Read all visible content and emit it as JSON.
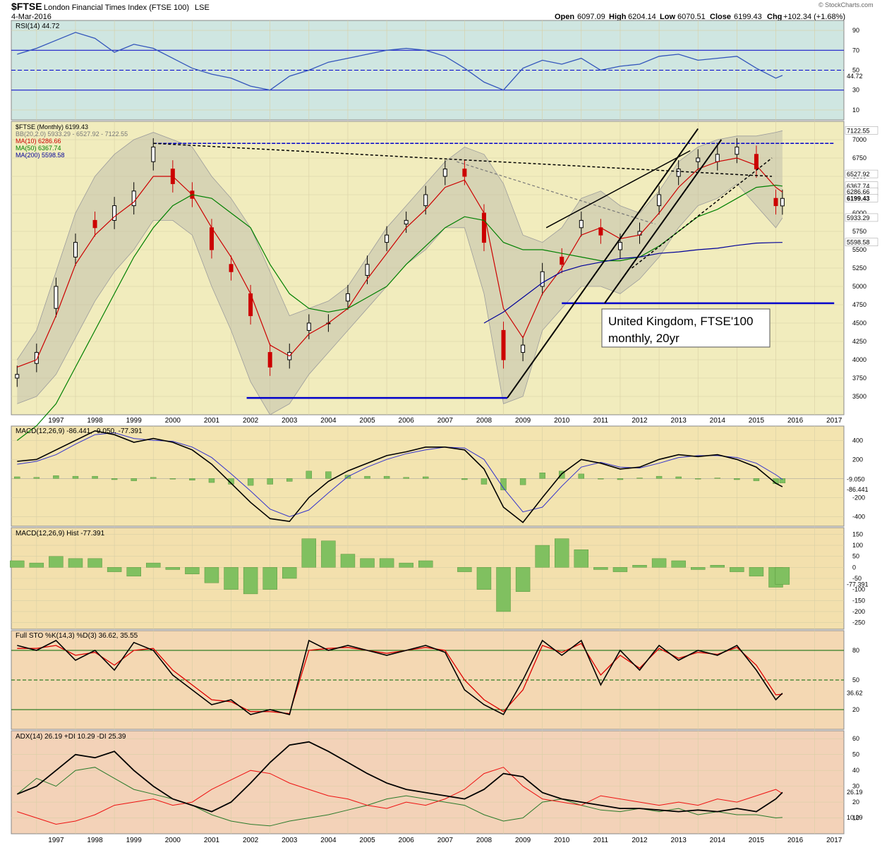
{
  "header": {
    "symbol": "$FTSE",
    "name": "London Financial Times Index (FTSE 100)",
    "exchange": "LSE",
    "date": "4-Mar-2016",
    "watermark": "© StockCharts.com",
    "quote": {
      "open_label": "Open",
      "open": "6097.09",
      "high_label": "High",
      "high": "6204.14",
      "low_label": "Low",
      "low": "6070.51",
      "close_label": "Close",
      "close": "6199.43",
      "chg_label": "Chg",
      "chg": "+102.34 (+1.68%)"
    }
  },
  "annotation": {
    "line1": "United Kingdom, FTSE'100",
    "line2": "monthly, 20yr"
  },
  "colors": {
    "rsi_bg": "#cfe6e1",
    "price_bg": "#f1ecbd",
    "macd_bg": "#f3e4b0",
    "hist_bg": "#f3e0ad",
    "sto_bg": "#f4d8b3",
    "adx_bg": "#f3d2b8",
    "grid": "#d8cfa5",
    "up": "#000000",
    "down": "#cc0000",
    "bb": "#9c9c9c",
    "ma10": "#cc0000",
    "ma50": "#008000",
    "ma200": "#000099",
    "blue_line": "#0000cc",
    "hist_bar": "#80c060"
  },
  "x_axis": {
    "years": [
      "1997",
      "1998",
      "1999",
      "2000",
      "2001",
      "2002",
      "2003",
      "2004",
      "2005",
      "2006",
      "2007",
      "2008",
      "2009",
      "2010",
      "2011",
      "2012",
      "2013",
      "2014",
      "2015",
      "2016",
      "2017"
    ]
  },
  "chart_data": [
    {
      "type": "line",
      "panel": "rsi",
      "legend": "RSI(14) 44.72",
      "y_ticks": [
        "10",
        "30",
        "50",
        "70",
        "90"
      ],
      "ylim": [
        0,
        100
      ],
      "last_label": "44.72",
      "x": [
        1996.5,
        1997.0,
        1997.5,
        1998.0,
        1998.5,
        1999.0,
        1999.5,
        2000.0,
        2000.5,
        2001.0,
        2001.5,
        2002.0,
        2002.5,
        2003.0,
        2003.5,
        2004.0,
        2004.5,
        2005.0,
        2005.5,
        2006.0,
        2006.5,
        2007.0,
        2007.5,
        2008.0,
        2008.5,
        2009.0,
        2009.5,
        2010.0,
        2010.5,
        2011.0,
        2011.5,
        2012.0,
        2012.5,
        2013.0,
        2013.5,
        2014.0,
        2014.5,
        2015.0,
        2015.5,
        2016.0,
        2016.17
      ],
      "values": [
        66,
        72,
        80,
        88,
        82,
        68,
        76,
        72,
        62,
        52,
        46,
        42,
        34,
        30,
        44,
        50,
        58,
        62,
        66,
        70,
        72,
        70,
        64,
        52,
        38,
        30,
        52,
        60,
        56,
        62,
        50,
        54,
        56,
        64,
        66,
        60,
        62,
        64,
        52,
        42,
        44.72
      ],
      "ref_lines": [
        70,
        50,
        30
      ]
    },
    {
      "type": "candlestick",
      "panel": "price",
      "legend": [
        {
          "label": "$FTSE (Monthly) 6199.43"
        },
        {
          "label": "BB(20,2.0) 5933.29 - 6527.92 - 7122.55"
        },
        {
          "label": "MA(10) 6286.66"
        },
        {
          "label": "MA(50) 6367.74"
        },
        {
          "label": "MA(200) 5598.58"
        }
      ],
      "y_ticks": [
        "3500",
        "3750",
        "4000",
        "4250",
        "4500",
        "4750",
        "5000",
        "5250",
        "5500",
        "5750",
        "6000",
        "6250",
        "6500",
        "6750",
        "7000"
      ],
      "ylim": [
        3250,
        7250
      ],
      "right_labels": [
        "7122.55",
        "6527.92",
        "6367.74",
        "6286.66",
        "6199.43",
        "5933.29",
        "5598.58"
      ],
      "x": [
        1996.5,
        1997.0,
        1997.5,
        1998.0,
        1998.5,
        1999.0,
        1999.5,
        2000.0,
        2000.5,
        2001.0,
        2001.5,
        2002.0,
        2002.5,
        2003.0,
        2003.5,
        2004.0,
        2004.5,
        2005.0,
        2005.5,
        2006.0,
        2006.5,
        2007.0,
        2007.5,
        2008.0,
        2008.5,
        2009.0,
        2009.5,
        2010.0,
        2010.5,
        2011.0,
        2011.5,
        2012.0,
        2012.5,
        2013.0,
        2013.5,
        2014.0,
        2014.5,
        2015.0,
        2015.5,
        2016.0,
        2016.17
      ],
      "close": [
        3800,
        4100,
        5000,
        5600,
        5800,
        6100,
        6300,
        6900,
        6400,
        6200,
        5500,
        5200,
        4600,
        3900,
        4100,
        4500,
        4500,
        4900,
        5300,
        5700,
        5900,
        6250,
        6600,
        6500,
        5600,
        4000,
        4200,
        5200,
        5300,
        5900,
        5700,
        5600,
        5750,
        6250,
        6600,
        6750,
        6800,
        6900,
        6600,
        6100,
        6199.43
      ],
      "open": [
        3750,
        3950,
        4700,
        5400,
        5900,
        5900,
        6100,
        6700,
        6600,
        6300,
        5800,
        5300,
        4900,
        4100,
        4000,
        4400,
        4500,
        4800,
        5150,
        5600,
        5850,
        6100,
        6500,
        6600,
        6000,
        4400,
        4100,
        5000,
        5400,
        5800,
        5800,
        5500,
        5700,
        6100,
        6500,
        6700,
        6700,
        6800,
        6800,
        6200,
        6097.09
      ],
      "ma10": [
        3900,
        4000,
        4600,
        5300,
        5700,
        5950,
        6150,
        6500,
        6500,
        6250,
        5800,
        5400,
        4900,
        4200,
        4050,
        4350,
        4500,
        4700,
        5100,
        5450,
        5800,
        6050,
        6350,
        6450,
        6000,
        4700,
        4300,
        4900,
        5250,
        5700,
        5800,
        5650,
        5700,
        6000,
        6350,
        6600,
        6700,
        6750,
        6650,
        6350,
        6286.66
      ],
      "ma50": [
        2900,
        3100,
        3400,
        3900,
        4400,
        4900,
        5400,
        5800,
        6100,
        6250,
        6200,
        6000,
        5800,
        5300,
        4900,
        4700,
        4650,
        4700,
        4850,
        5000,
        5300,
        5550,
        5800,
        5950,
        5900,
        5600,
        5500,
        5500,
        5450,
        5400,
        5350,
        5350,
        5400,
        5550,
        5750,
        5950,
        6050,
        6200,
        6350,
        6380,
        6367.74
      ],
      "ma200": [
        null,
        null,
        null,
        null,
        null,
        null,
        null,
        null,
        null,
        null,
        null,
        null,
        null,
        null,
        null,
        null,
        null,
        null,
        null,
        null,
        null,
        null,
        null,
        null,
        4500,
        4650,
        4850,
        5050,
        5200,
        5280,
        5330,
        5380,
        5400,
        5450,
        5470,
        5500,
        5520,
        5560,
        5590,
        5598,
        5598.58
      ],
      "bb_upper": [
        4000,
        4400,
        5200,
        6000,
        6500,
        6800,
        7000,
        7100,
        7000,
        6900,
        6500,
        6200,
        5800,
        5200,
        4600,
        4700,
        4800,
        5000,
        5400,
        5800,
        6100,
        6400,
        6700,
        6900,
        6800,
        6400,
        5700,
        5600,
        5800,
        6200,
        6300,
        6100,
        6000,
        6300,
        6700,
        6900,
        7000,
        7050,
        7050,
        7100,
        7122.55
      ],
      "bb_lower": [
        3400,
        3500,
        3800,
        4300,
        4800,
        5200,
        5500,
        5900,
        5900,
        5700,
        5000,
        4400,
        3700,
        3250,
        3400,
        3800,
        4100,
        4400,
        4700,
        5000,
        5300,
        5500,
        5800,
        5800,
        4900,
        3400,
        3500,
        4400,
        4700,
        5000,
        5000,
        4900,
        5100,
        5400,
        5800,
        6100,
        6200,
        6400,
        6100,
        5800,
        5933.29
      ],
      "hlines": [
        {
          "value": 3480,
          "from_x": 2002.4,
          "to_x": 2009.1
        },
        {
          "value": 4770,
          "from_x": 2010.5,
          "to_x": 2017.5
        },
        {
          "value": 6950,
          "from_x": 2000.0,
          "to_x": 2017.5
        }
      ]
    },
    {
      "type": "line",
      "panel": "macd",
      "legend": "MACD(12,26,9) -86.441, -9.050, -77.391",
      "y_ticks": [
        "400",
        "200",
        "-200",
        "-400"
      ],
      "ylim": [
        -500,
        550
      ],
      "right_labels": [
        "-9.050",
        "-86.441"
      ],
      "x": [
        1996.5,
        1997.0,
        1997.5,
        1998.0,
        1998.5,
        1999.0,
        1999.5,
        2000.0,
        2000.5,
        2001.0,
        2001.5,
        2002.0,
        2002.5,
        2003.0,
        2003.5,
        2004.0,
        2004.5,
        2005.0,
        2005.5,
        2006.0,
        2006.5,
        2007.0,
        2007.5,
        2008.0,
        2008.5,
        2009.0,
        2009.5,
        2010.0,
        2010.5,
        2011.0,
        2011.5,
        2012.0,
        2012.5,
        2013.0,
        2013.5,
        2014.0,
        2014.5,
        2015.0,
        2015.5,
        2016.0,
        2016.17
      ],
      "macd": [
        180,
        200,
        300,
        400,
        500,
        460,
        380,
        420,
        380,
        300,
        150,
        -50,
        -250,
        -420,
        -450,
        -200,
        -30,
        80,
        160,
        240,
        280,
        330,
        330,
        300,
        100,
        -300,
        -460,
        -200,
        50,
        200,
        160,
        100,
        120,
        200,
        250,
        230,
        250,
        200,
        120,
        -50,
        -86.441
      ],
      "signal": [
        150,
        180,
        250,
        360,
        460,
        480,
        420,
        400,
        390,
        330,
        220,
        50,
        -130,
        -320,
        -400,
        -330,
        -150,
        20,
        120,
        200,
        260,
        300,
        330,
        320,
        200,
        -100,
        -350,
        -300,
        -80,
        120,
        170,
        120,
        110,
        160,
        220,
        240,
        240,
        220,
        160,
        40,
        -9.05
      ]
    },
    {
      "type": "bar",
      "panel": "histogram",
      "legend": "MACD(12,26,9) Hist -77.391",
      "y_ticks": [
        "150",
        "100",
        "50",
        "0",
        "-50",
        "-100",
        "-150",
        "-200",
        "-250"
      ],
      "ylim": [
        -280,
        180
      ],
      "right_labels": [
        "-77.391"
      ],
      "x": [
        1996.5,
        1997.0,
        1997.5,
        1998.0,
        1998.5,
        1999.0,
        1999.5,
        2000.0,
        2000.5,
        2001.0,
        2001.5,
        2002.0,
        2002.5,
        2003.0,
        2003.5,
        2004.0,
        2004.5,
        2005.0,
        2005.5,
        2006.0,
        2006.5,
        2007.0,
        2007.5,
        2008.0,
        2008.5,
        2009.0,
        2009.5,
        2010.0,
        2010.5,
        2011.0,
        2011.5,
        2012.0,
        2012.5,
        2013.0,
        2013.5,
        2014.0,
        2014.5,
        2015.0,
        2015.5,
        2016.0,
        2016.17
      ],
      "values": [
        30,
        20,
        50,
        40,
        40,
        -20,
        -40,
        20,
        -10,
        -30,
        -70,
        -100,
        -120,
        -100,
        -50,
        130,
        120,
        60,
        40,
        40,
        20,
        30,
        0,
        -20,
        -100,
        -200,
        -110,
        100,
        130,
        80,
        -10,
        -20,
        10,
        40,
        30,
        -10,
        10,
        -20,
        -40,
        -90,
        -77.391
      ]
    },
    {
      "type": "line",
      "panel": "stochastic",
      "legend": "Full STO %K(14,3) %D(3) 36.62, 35.55",
      "y_ticks": [
        "80",
        "50",
        "20"
      ],
      "ylim": [
        0,
        100
      ],
      "right_labels": [
        "36.62"
      ],
      "ref_lines": [
        80,
        50,
        20
      ],
      "x": [
        1996.5,
        1997.0,
        1997.5,
        1998.0,
        1998.5,
        1999.0,
        1999.5,
        2000.0,
        2000.5,
        2001.0,
        2001.5,
        2002.0,
        2002.5,
        2003.0,
        2003.5,
        2004.0,
        2004.5,
        2005.0,
        2005.5,
        2006.0,
        2006.5,
        2007.0,
        2007.5,
        2008.0,
        2008.5,
        2009.0,
        2009.5,
        2010.0,
        2010.5,
        2011.0,
        2011.5,
        2012.0,
        2012.5,
        2013.0,
        2013.5,
        2014.0,
        2014.5,
        2015.0,
        2015.5,
        2016.0,
        2016.17
      ],
      "k": [
        85,
        80,
        90,
        70,
        80,
        60,
        88,
        80,
        55,
        40,
        25,
        30,
        15,
        20,
        15,
        90,
        80,
        85,
        80,
        75,
        80,
        85,
        78,
        40,
        25,
        15,
        50,
        90,
        75,
        90,
        45,
        80,
        60,
        85,
        70,
        80,
        75,
        85,
        60,
        30,
        36.62
      ],
      "d": [
        82,
        82,
        85,
        75,
        78,
        65,
        80,
        82,
        60,
        45,
        30,
        28,
        18,
        18,
        16,
        80,
        82,
        83,
        80,
        77,
        80,
        83,
        80,
        50,
        30,
        18,
        40,
        85,
        78,
        87,
        55,
        75,
        62,
        82,
        72,
        78,
        76,
        83,
        65,
        35,
        35.55
      ]
    },
    {
      "type": "line",
      "panel": "adx",
      "legend": "ADX(14) 26.19 +DI 10.29 -DI 25.39",
      "y_ticks": [
        "60",
        "50",
        "40",
        "30",
        "20",
        "10"
      ],
      "ylim": [
        0,
        65
      ],
      "right_labels": [
        "26.19",
        "10.29"
      ],
      "x": [
        1996.5,
        1997.0,
        1997.5,
        1998.0,
        1998.5,
        1999.0,
        1999.5,
        2000.0,
        2000.5,
        2001.0,
        2001.5,
        2002.0,
        2002.5,
        2003.0,
        2003.5,
        2004.0,
        2004.5,
        2005.0,
        2005.5,
        2006.0,
        2006.5,
        2007.0,
        2007.5,
        2008.0,
        2008.5,
        2009.0,
        2009.5,
        2010.0,
        2010.5,
        2011.0,
        2011.5,
        2012.0,
        2012.5,
        2013.0,
        2013.5,
        2014.0,
        2014.5,
        2015.0,
        2015.5,
        2016.0,
        2016.17
      ],
      "adx": [
        25,
        30,
        40,
        50,
        48,
        52,
        40,
        30,
        22,
        18,
        14,
        20,
        32,
        45,
        56,
        58,
        52,
        45,
        38,
        32,
        28,
        26,
        24,
        22,
        28,
        38,
        36,
        26,
        22,
        20,
        18,
        16,
        16,
        15,
        14,
        15,
        14,
        16,
        14,
        22,
        26.19
      ],
      "plus_di": [
        25,
        35,
        30,
        40,
        42,
        35,
        28,
        25,
        22,
        18,
        12,
        8,
        6,
        5,
        8,
        10,
        12,
        15,
        18,
        22,
        24,
        22,
        20,
        18,
        12,
        8,
        10,
        20,
        22,
        18,
        15,
        14,
        16,
        14,
        16,
        12,
        14,
        12,
        12,
        10,
        10.29
      ],
      "minus_di": [
        14,
        10,
        6,
        8,
        12,
        18,
        20,
        22,
        18,
        20,
        28,
        34,
        40,
        38,
        32,
        28,
        24,
        22,
        18,
        16,
        20,
        18,
        22,
        28,
        38,
        42,
        30,
        22,
        20,
        18,
        24,
        22,
        20,
        18,
        20,
        18,
        22,
        20,
        24,
        28,
        25.39
      ]
    }
  ]
}
